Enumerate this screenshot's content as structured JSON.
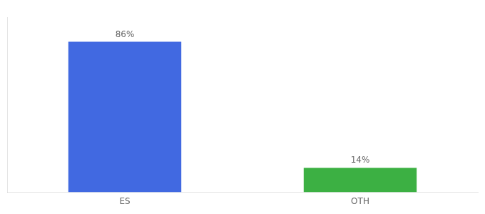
{
  "chart_data": {
    "type": "bar",
    "categories": [
      "ES",
      "OTH"
    ],
    "values": [
      86,
      14
    ],
    "colors": [
      "#4169e1",
      "#3cb043"
    ],
    "data_labels": true,
    "value_labels": [
      "86%",
      "14%"
    ],
    "ylim": [
      0,
      100
    ],
    "grid": false,
    "tick_labels": "x"
  }
}
